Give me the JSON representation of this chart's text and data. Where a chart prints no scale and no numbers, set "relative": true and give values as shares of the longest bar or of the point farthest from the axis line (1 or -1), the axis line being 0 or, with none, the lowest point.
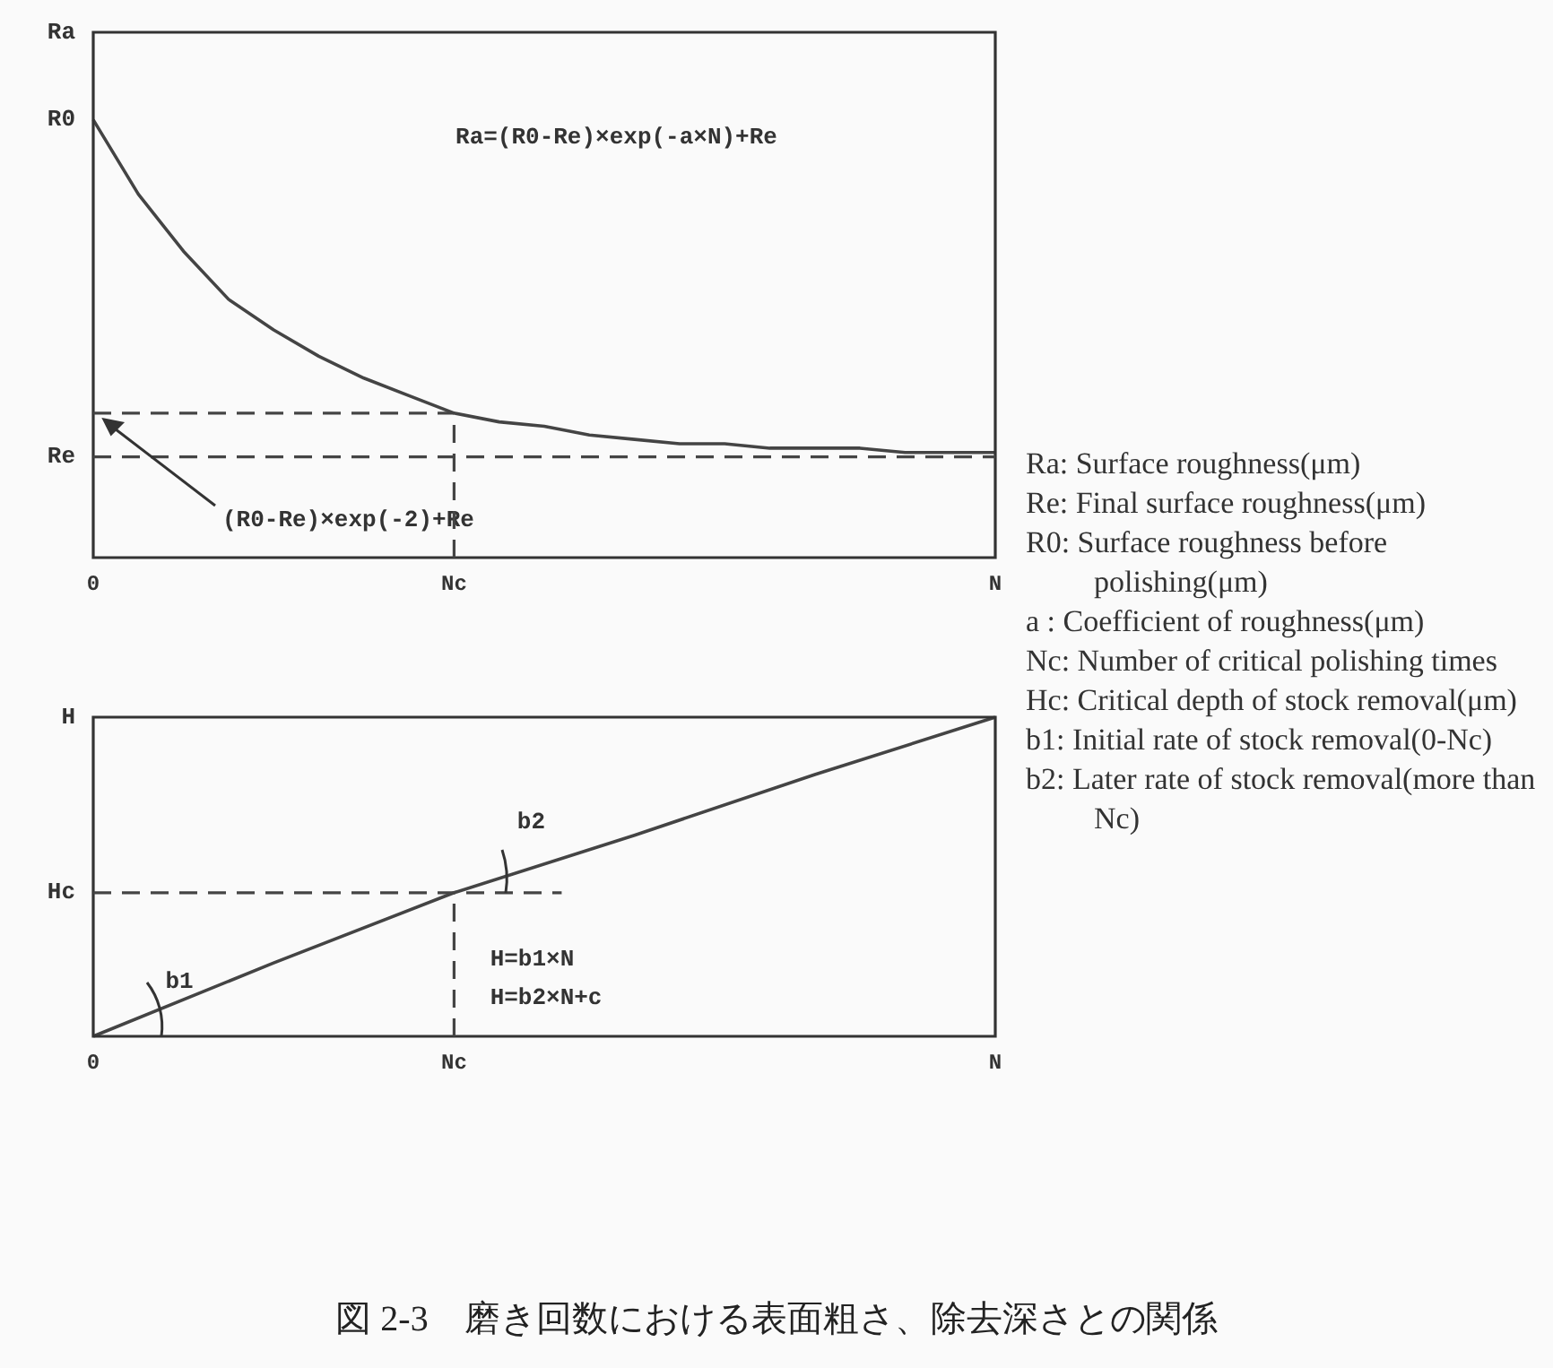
{
  "chart_data": [
    {
      "type": "line",
      "relative": true,
      "categories": [
        "0",
        null,
        null,
        null,
        null,
        null,
        null,
        null,
        "Nc",
        null,
        null,
        null,
        null,
        null,
        null,
        null,
        null,
        null,
        null,
        null,
        "N"
      ],
      "series": [
        {
          "color": "#444444",
          "values": [
            1,
            0.83,
            0.7,
            0.59,
            0.52,
            0.46,
            0.41,
            0.37,
            0.33,
            0.31,
            0.3,
            0.28,
            0.27,
            0.26,
            0.26,
            0.25,
            0.25,
            0.25,
            0.24,
            0.24,
            0.24
          ]
        }
      ],
      "ref_lines": [
        {
          "axis": "y",
          "value": 0.33,
          "label": "(R0-Re)×exp(-2)+Re",
          "line_style": "dashed"
        },
        {
          "axis": "y",
          "value": 0.23,
          "label": "Re",
          "line_style": "dashed"
        },
        {
          "axis": "x",
          "value": "Nc",
          "line_style": "dashed"
        }
      ],
      "annotations": [
        "Ra=(R0-Re)×exp(-a×N)+Re",
        "Ra",
        {
          "text": "R0",
          "x": "0",
          "y": 1
        }
      ]
    },
    {
      "type": "line",
      "relative": true,
      "categories": [
        "0",
        null,
        "Nc",
        null,
        null,
        "N"
      ],
      "series": [
        {
          "color": "#444444",
          "values": [
            0,
            0.23,
            0.45,
            0.63,
            0.82,
            1
          ]
        }
      ],
      "ref_lines": [
        {
          "axis": "y",
          "value": 0.45,
          "label": "Hc",
          "line_style": "dashed"
        },
        {
          "axis": "x",
          "value": "Nc",
          "line_style": "dashed"
        }
      ],
      "annotations": [
        "H=b1×N",
        "H=b2×N+c",
        "b1",
        "b2",
        "H"
      ]
    },
    {
      "type": "other",
      "title": "図 2-3　磨き回数における表面粗さ、除去深さとの関係",
      "annotations": [
        "Ra: Surface roughness(μm)",
        "Re: Final surface roughness(μm)",
        "R0: Surface roughness before polishing(μm)",
        "a : Coefficient of roughness(μm)",
        "Nc: Number of critical polishing times",
        "Hc: Critical depth of stock removal(μm)",
        "b1: Initial rate of stock removal(0-Nc)",
        "b2: Later rate of stock removal(more than Nc)"
      ]
    }
  ]
}
